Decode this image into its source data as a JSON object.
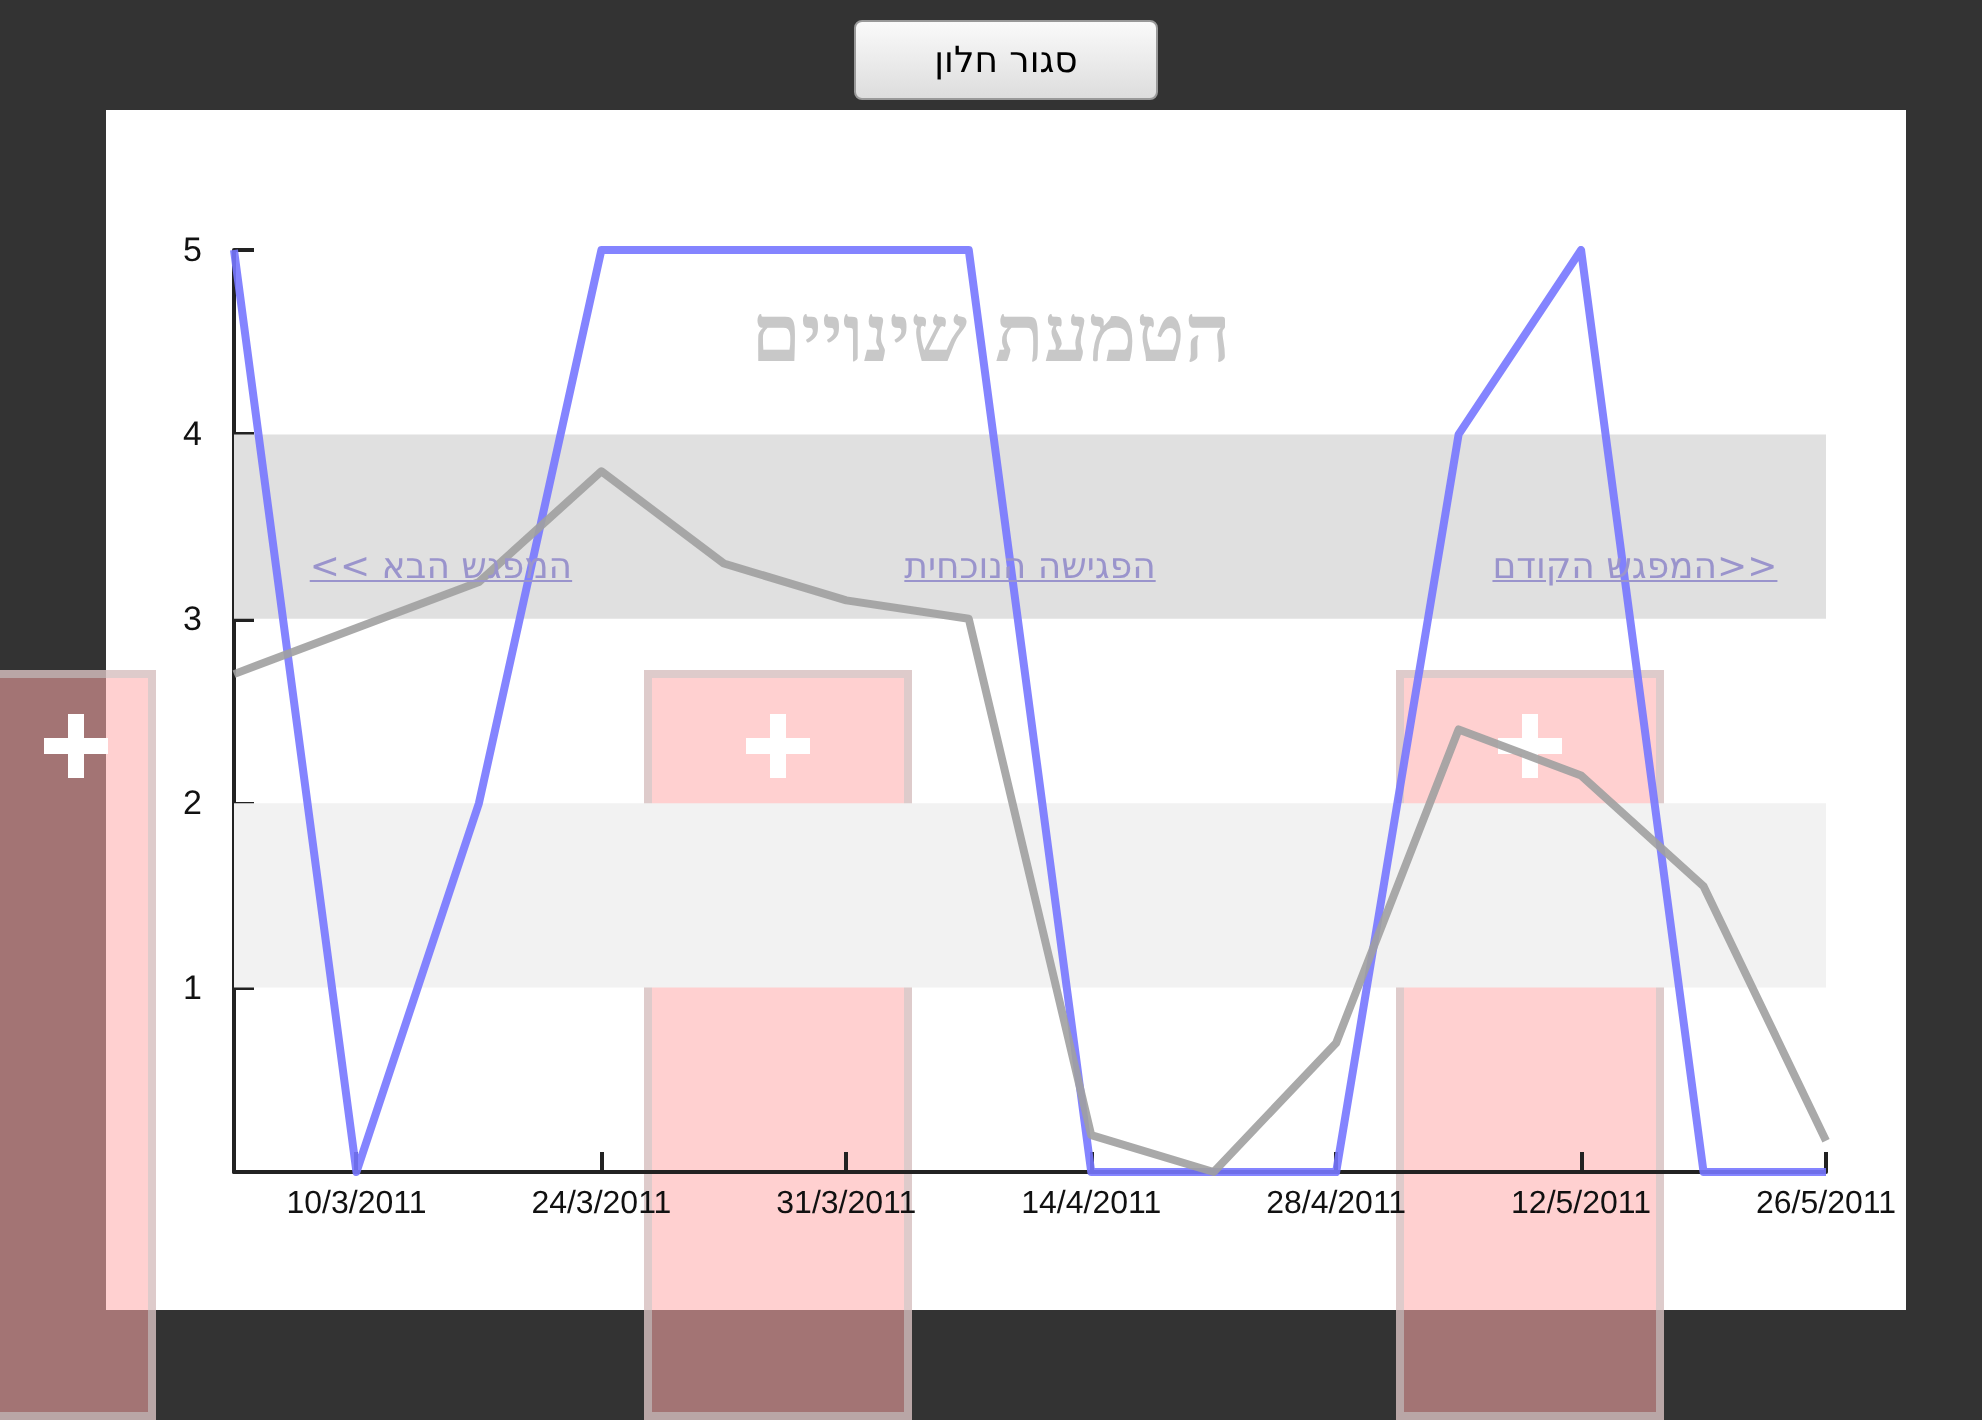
{
  "chart_data": {
    "type": "line",
    "title": "הטמעת שינויים",
    "categories": [
      null,
      "10/3/2011",
      null,
      "24/3/2011",
      null,
      "31/3/2011",
      null,
      "14/4/2011",
      null,
      "28/4/2011",
      null,
      "12/5/2011",
      null,
      "26/5/2011"
    ],
    "series": [
      {
        "color": "#7777ff",
        "values": [
          5,
          0,
          2,
          5,
          5,
          5,
          5,
          0,
          0,
          0,
          4,
          5,
          0,
          0
        ]
      },
      {
        "color": "#a0a0a0",
        "values": [
          2.7,
          2.95,
          3.2,
          3.8,
          3.3,
          3.1,
          3.0,
          0.2,
          0,
          0.7,
          2.4,
          2.15,
          1.55,
          0.17
        ]
      }
    ],
    "ylim": [
      0,
      5
    ],
    "yticks": [
      1,
      2,
      3,
      4,
      5
    ],
    "grid": false,
    "marker": "none",
    "line_style": "solid",
    "bands": [
      {
        "axis": "y",
        "from": 3,
        "to": 4,
        "color": "#e0e0e0"
      },
      {
        "axis": "y",
        "from": 1,
        "to": 2,
        "color": "#f2f2f2"
      }
    ],
    "annotations": [
      "סגור חלון",
      "<<המפגש הקודם",
      "הפגישה הנוכחית",
      "המפגש הבא >>"
    ]
  }
}
